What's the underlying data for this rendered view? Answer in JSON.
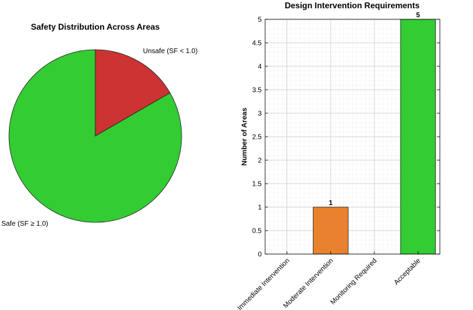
{
  "chart_data": [
    {
      "type": "pie",
      "title": "Safety Distribution Across Areas",
      "slices": [
        {
          "label": "Unsafe (SF < 1.0)",
          "value": 1,
          "color": "#cc3333"
        },
        {
          "label": "Safe (SF ≥ 1.0)",
          "value": 5,
          "color": "#33cc33"
        }
      ]
    },
    {
      "type": "bar",
      "title": "Design Intervention Requirements",
      "ylabel": "Number of Areas",
      "xlabel": "",
      "categories": [
        "Immediate Intervention",
        "Moderate Intervention",
        "Monitoring Required",
        "Acceptable"
      ],
      "values": [
        0,
        1,
        0,
        5
      ],
      "data_labels": [
        "",
        "1",
        "",
        "5"
      ],
      "colors": [
        "#cc3333",
        "#e8822e",
        "#f0d000",
        "#33cc33"
      ],
      "ylim": [
        0,
        5
      ],
      "yticks": [
        "0",
        "0.5",
        "1",
        "1.5",
        "2",
        "2.5",
        "3",
        "3.5",
        "4",
        "4.5",
        "5"
      ],
      "grid": true
    }
  ]
}
